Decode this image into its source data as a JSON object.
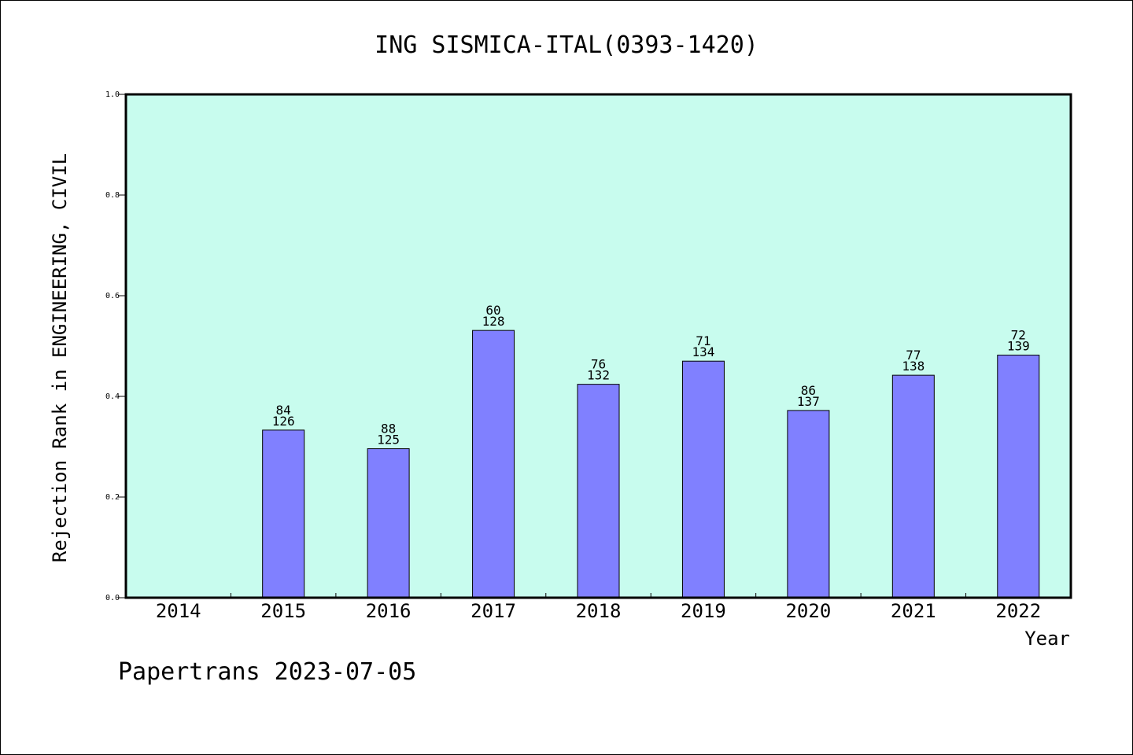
{
  "chart_data": {
    "type": "bar",
    "title": "ING SISMICA-ITAL(0393-1420)",
    "xlabel": "Year",
    "ylabel": "Rejection Rank in ENGINEERING, CIVIL",
    "ylim": [
      0.0,
      1.0
    ],
    "yticks": [
      "0.0",
      "0.2",
      "0.4",
      "0.6",
      "0.8",
      "1.0"
    ],
    "categories": [
      "2014",
      "2015",
      "2016",
      "2017",
      "2018",
      "2019",
      "2020",
      "2021",
      "2022"
    ],
    "values": [
      null,
      0.333,
      0.296,
      0.531,
      0.424,
      0.47,
      0.372,
      0.442,
      0.482
    ],
    "rank_labels": [
      "",
      "84",
      "88",
      "60",
      "76",
      "71",
      "86",
      "77",
      "72"
    ],
    "total_labels": [
      "",
      "126",
      "125",
      "128",
      "132",
      "134",
      "137",
      "138",
      "139"
    ],
    "grid": false,
    "colors": {
      "plot_background": "#c8fcee",
      "bar_fill": "#8080ff",
      "bar_stroke": "#000000"
    }
  },
  "footer": "Papertrans 2023-07-05"
}
